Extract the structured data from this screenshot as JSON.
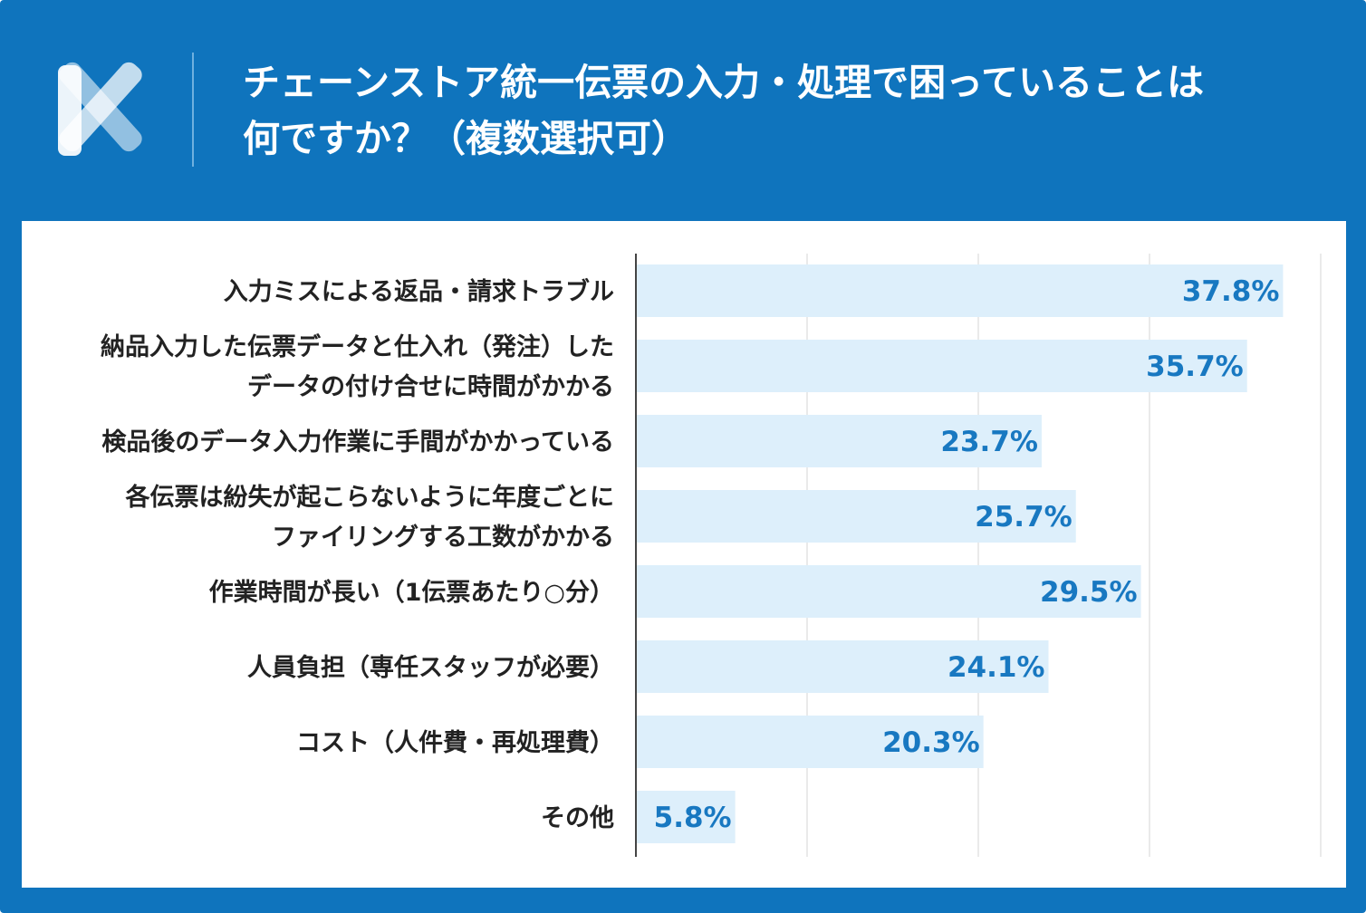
{
  "header": {
    "title_line1": "チェーンストア統一伝票の入力・処理で困っていることは",
    "title_line2": "何ですか？（複数選択可）",
    "logo_icon": "x-logo-icon"
  },
  "colors": {
    "brand_blue": "#0f74bd",
    "bar_fill": "#ddeffb",
    "value_label": "#1878c1",
    "grid": "#e3e3e3",
    "category_text": "#222222"
  },
  "chart_data": {
    "type": "bar",
    "orientation": "horizontal",
    "categories": [
      [
        "入力ミスによる返品・請求トラブル"
      ],
      [
        "納品入力した伝票データと仕入れ（発注）した",
        "データの付け合せに時間がかかる"
      ],
      [
        "検品後のデータ入力作業に手間がかかっている"
      ],
      [
        "各伝票は紛失が起こらないように年度ごとに",
        "ファイリングする工数がかかる"
      ],
      [
        "作業時間が長い（1伝票あたり○分）"
      ],
      [
        "人員負担（専任スタッフが必要）"
      ],
      [
        "コスト（人件費・再処理費）"
      ],
      [
        "その他"
      ]
    ],
    "values": [
      37.8,
      35.7,
      23.7,
      25.7,
      29.5,
      24.1,
      20.3,
      5.8
    ],
    "value_labels": [
      "37.8%",
      "35.7%",
      "23.7%",
      "25.7%",
      "29.5%",
      "24.1%",
      "20.3%",
      "5.8%"
    ],
    "xlim": [
      0,
      40
    ],
    "grid": true,
    "legend": "none"
  }
}
